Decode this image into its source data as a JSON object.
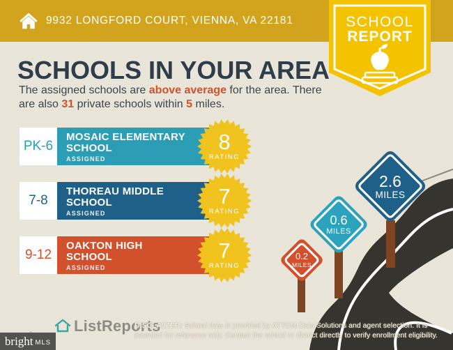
{
  "header": {
    "address": "9932 LONGFORD COURT, VIENNA, VA 22181"
  },
  "report_badge": {
    "line1": "SCHOOL",
    "line2": "REPORT"
  },
  "main": {
    "title": "SCHOOLS IN YOUR AREA",
    "subtitle_segments": {
      "s1": "The assigned schools are ",
      "s2": "above average",
      "s3": " for the area. There are also ",
      "s4": "31",
      "s5": " private schools within ",
      "s6": "5",
      "s7": " miles."
    }
  },
  "schools": [
    {
      "grades": "PK-6",
      "name": "MOSAIC ELEMENTARY SCHOOL",
      "status": "ASSIGNED",
      "rating": "8",
      "rating_label": "RATING",
      "color": "#2b9db5"
    },
    {
      "grades": "7-8",
      "name": "THOREAU MIDDLE SCHOOL",
      "status": "ASSIGNED",
      "rating": "7",
      "rating_label": "RATING",
      "color": "#1f6089"
    },
    {
      "grades": "9-12",
      "name": "OAKTON HIGH SCHOOL",
      "status": "ASSIGNED",
      "rating": "7",
      "rating_label": "RATING",
      "color": "#d2502c"
    }
  ],
  "distance_signs": [
    {
      "value": "0.2",
      "label": "MILES",
      "color": "#d2502c"
    },
    {
      "value": "0.6",
      "label": "MILES",
      "color": "#2ba3bd"
    },
    {
      "value": "2.6",
      "label": "MILES",
      "color": "#1f6089"
    }
  ],
  "footer": {
    "listreports_logo": "ListReports",
    "brightmls_name": "bright",
    "brightmls_suffix": "MLS",
    "disclaimer_label": "DISCLAIMER:",
    "disclaimer_text": " School data is provided by ATTOM Data Solutions and agent selection. It is intended for reference only. Contact the school or district directly to verify enrollment eligibility."
  },
  "palette": {
    "header_gold": "#d2a31d",
    "badge_yellow": "#f3c300",
    "rating_yellow": "#f0c31e",
    "background_beige": "#eae5d9",
    "title_navy": "#2e3d4a",
    "accent_orange": "#d2502c",
    "teal": "#2b9db5",
    "dark_blue": "#1f6089",
    "road_dark": "#36342e",
    "post_brown": "#7d4522"
  }
}
